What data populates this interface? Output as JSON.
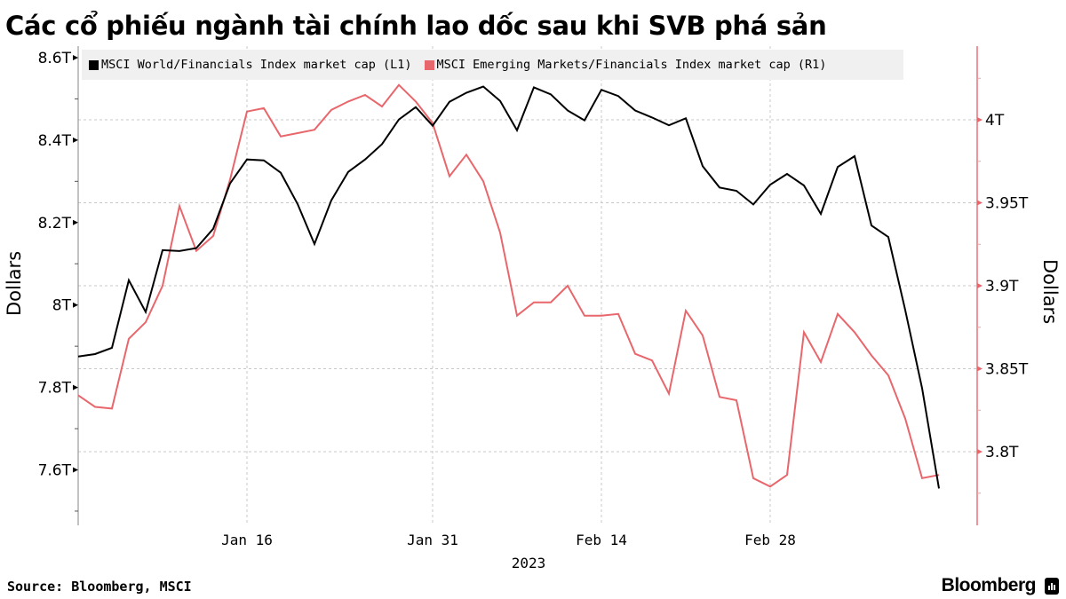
{
  "title": "Các cổ phiếu ngành tài chính lao dốc sau khi SVB phá sản",
  "source": "Source: Bloomberg, MSCI",
  "brand": "Bloomberg",
  "legend": [
    {
      "label": "MSCI World/Financials Index market cap (L1)",
      "color": "#000000"
    },
    {
      "label": "MSCI Emerging Markets/Financials Index market cap (R1)",
      "color": "#e8676c"
    }
  ],
  "axes": {
    "left_title": "Dollars",
    "right_title": "Dollars",
    "left_ticks": [
      "8.6T",
      "8.4T",
      "8.2T",
      "8T",
      "7.8T",
      "7.6T"
    ],
    "right_ticks": [
      "4T",
      "3.95T",
      "3.9T",
      "3.85T",
      "3.8T"
    ],
    "x_ticks": [
      "Jan 16",
      "Jan 31",
      "Feb 14",
      "Feb 28"
    ],
    "x_year": "2023"
  },
  "chart_data": {
    "type": "line",
    "title": "Các cổ phiếu ngành tài chính lao dốc sau khi SVB phá sản",
    "xlabel": "2023",
    "ylabel": "Dollars",
    "y2label": "Dollars",
    "x_tick_labels": [
      "Jan 16",
      "Jan 31",
      "Feb 14",
      "Feb 28"
    ],
    "x_range": [
      "2023-01-02",
      "2023-03-13"
    ],
    "ylim_left": [
      7.47,
      8.62
    ],
    "ylim_right": [
      3.773,
      4.043
    ],
    "grid": true,
    "legend_position": "top",
    "colors": {
      "L1": "#000000",
      "R1": "#e8676c"
    },
    "series": [
      {
        "name": "MSCI World/Financials Index market cap (L1)",
        "axis": "left",
        "unit": "T USD",
        "values": [
          7.875,
          7.881,
          7.896,
          8.06,
          7.983,
          8.133,
          8.131,
          8.138,
          8.185,
          8.295,
          8.353,
          8.351,
          8.321,
          8.245,
          8.148,
          8.254,
          8.323,
          8.353,
          8.39,
          8.45,
          8.48,
          8.435,
          8.493,
          8.515,
          8.53,
          8.495,
          8.424,
          8.528,
          8.511,
          8.472,
          8.448,
          8.522,
          8.507,
          8.472,
          8.455,
          8.436,
          8.453,
          8.337,
          8.285,
          8.277,
          8.244,
          8.292,
          8.318,
          8.29,
          8.221,
          8.335,
          8.361,
          8.193,
          8.165,
          7.988,
          7.798,
          7.555
        ]
      },
      {
        "name": "MSCI Emerging Markets/Financials Index market cap (R1)",
        "axis": "right",
        "unit": "T USD",
        "values": [
          3.834,
          3.827,
          3.826,
          3.868,
          3.878,
          3.9,
          3.948,
          3.921,
          3.93,
          3.964,
          4.005,
          4.007,
          3.99,
          3.992,
          3.994,
          4.006,
          4.011,
          4.015,
          4.008,
          4.021,
          4.011,
          3.998,
          3.966,
          3.979,
          3.963,
          3.932,
          3.882,
          3.89,
          3.89,
          3.9,
          3.882,
          3.882,
          3.883,
          3.859,
          3.855,
          3.835,
          3.885,
          3.87,
          3.833,
          3.831,
          3.784,
          3.779,
          3.786,
          3.872,
          3.854,
          3.883,
          3.872,
          3.858,
          3.846,
          3.82,
          3.784,
          3.786
        ]
      }
    ]
  }
}
